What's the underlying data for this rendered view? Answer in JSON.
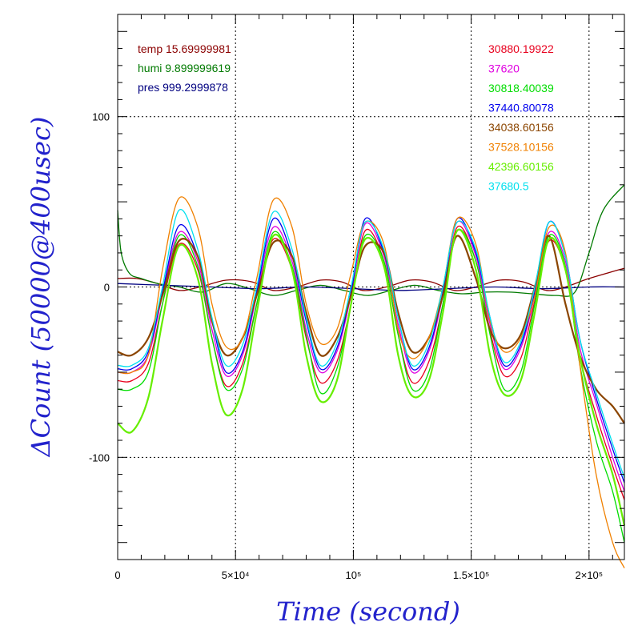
{
  "chart_data": {
    "type": "line",
    "title": "",
    "xlabel": "Time (second)",
    "ylabel": "ΔCount (50000@400usec)",
    "xlim": [
      0,
      215000
    ],
    "ylim": [
      -160,
      160
    ],
    "grid": true,
    "x_ticks": [
      {
        "value": 0,
        "label": "0"
      },
      {
        "value": 50000,
        "label": "5×10⁴"
      },
      {
        "value": 100000,
        "label": "10⁵"
      },
      {
        "value": 150000,
        "label": "1.5×10⁵"
      },
      {
        "value": 200000,
        "label": "2×10⁵"
      }
    ],
    "y_ticks": [
      {
        "value": 100,
        "label": "100"
      },
      {
        "value": 0,
        "label": "0"
      },
      {
        "value": -100,
        "label": "-100"
      }
    ],
    "env_legend": [
      {
        "label": "temp 15.69999981",
        "color": "#8b0000"
      },
      {
        "label": "humi 9.899999619",
        "color": "#007a00"
      },
      {
        "label": "pres 999.2999878",
        "color": "#000080"
      }
    ],
    "series_legend": [
      {
        "label": "30880.19922",
        "color": "#e8001e"
      },
      {
        "label": "37620",
        "color": "#e000e0"
      },
      {
        "label": "30818.40039",
        "color": "#00dd00"
      },
      {
        "label": "37440.80078",
        "color": "#0000ee"
      },
      {
        "label": "34038.60156",
        "color": "#8b4500"
      },
      {
        "label": "37528.10156",
        "color": "#f08000"
      },
      {
        "label": "42396.60156",
        "color": "#66ee00"
      },
      {
        "label": "37680.5",
        "color": "#00e0ee"
      }
    ],
    "series": [
      {
        "name": "temp 15.69999981",
        "color": "#8b0000",
        "x": [
          0,
          8000,
          17000,
          26000,
          35000,
          46000,
          57000,
          66000,
          76000,
          86000,
          95000,
          104000,
          114000,
          124000,
          133000,
          143000,
          152000,
          162000,
          172000,
          182000,
          190000,
          200000,
          215000
        ],
        "values": [
          5,
          5,
          2,
          -2,
          0,
          4,
          3,
          -2,
          0,
          4,
          3,
          -2,
          0,
          4,
          3,
          -2,
          0,
          4,
          3,
          -2,
          0,
          5,
          11
        ]
      },
      {
        "name": "humi 9.899999619",
        "color": "#007a00",
        "x": [
          0,
          1500,
          5000,
          10000,
          17000,
          26000,
          36000,
          46000,
          56000,
          66000,
          76000,
          86000,
          96000,
          106000,
          116000,
          126000,
          136000,
          146000,
          156000,
          166000,
          176000,
          186000,
          194000,
          200000,
          206000,
          215000
        ],
        "values": [
          45,
          20,
          8,
          5,
          2,
          0,
          -3,
          2,
          -1,
          -5,
          -2,
          1,
          -2,
          -5,
          -2,
          1,
          -2,
          -4,
          -3,
          -3,
          -4,
          -5,
          -3,
          20,
          45,
          60
        ]
      },
      {
        "name": "pres 999.2999878",
        "color": "#000080",
        "x": [
          0,
          20000,
          40000,
          60000,
          80000,
          100000,
          120000,
          140000,
          160000,
          180000,
          200000,
          215000
        ],
        "values": [
          2,
          1,
          0,
          -1,
          0,
          -1,
          -2,
          -1,
          0,
          -1,
          0,
          0
        ]
      },
      {
        "name": "30880.19922",
        "color": "#e8001e",
        "x": [
          0,
          6000,
          13000,
          19000,
          26000,
          34000,
          40000,
          46000,
          53000,
          59000,
          66000,
          74000,
          80000,
          86000,
          93000,
          99000,
          105000,
          113000,
          119000,
          125000,
          132000,
          138000,
          144000,
          152000,
          158000,
          164000,
          171000,
          177000,
          183000,
          190000,
          196000,
          203000,
          210000,
          215000
        ],
        "values": [
          -55,
          -55,
          -45,
          -10,
          25,
          10,
          -30,
          -58,
          -45,
          -10,
          28,
          10,
          -30,
          -56,
          -44,
          -10,
          33,
          15,
          -28,
          -56,
          -44,
          -10,
          35,
          15,
          -26,
          -52,
          -42,
          -8,
          27,
          10,
          -40,
          -75,
          -105,
          -125
        ]
      },
      {
        "name": "37620",
        "color": "#e000e0",
        "x": [
          0,
          6000,
          13000,
          19000,
          26000,
          34000,
          40000,
          46000,
          53000,
          59000,
          66000,
          74000,
          80000,
          86000,
          93000,
          99000,
          105000,
          113000,
          119000,
          125000,
          132000,
          138000,
          144000,
          152000,
          158000,
          164000,
          171000,
          177000,
          183000,
          190000,
          196000,
          203000,
          210000,
          215000
        ],
        "values": [
          -50,
          -50,
          -40,
          -5,
          32,
          15,
          -25,
          -52,
          -40,
          -5,
          35,
          15,
          -25,
          -50,
          -38,
          -5,
          37,
          18,
          -22,
          -50,
          -38,
          -5,
          38,
          18,
          -22,
          -48,
          -36,
          -5,
          32,
          15,
          -35,
          -68,
          -100,
          -120
        ]
      },
      {
        "name": "30818.40039",
        "color": "#00dd00",
        "x": [
          0,
          6000,
          13000,
          19000,
          26000,
          34000,
          40000,
          46000,
          53000,
          59000,
          66000,
          74000,
          80000,
          86000,
          93000,
          99000,
          105000,
          113000,
          119000,
          125000,
          132000,
          138000,
          144000,
          152000,
          158000,
          164000,
          171000,
          177000,
          183000,
          190000,
          196000,
          203000,
          210000,
          215000
        ],
        "values": [
          -60,
          -60,
          -50,
          -10,
          30,
          12,
          -30,
          -60,
          -48,
          -10,
          32,
          12,
          -28,
          -62,
          -48,
          -10,
          30,
          15,
          -28,
          -60,
          -50,
          -10,
          33,
          15,
          -28,
          -60,
          -50,
          -10,
          30,
          12,
          -45,
          -90,
          -120,
          -150
        ]
      },
      {
        "name": "37440.80078",
        "color": "#0000ee",
        "x": [
          0,
          6000,
          13000,
          19000,
          26000,
          34000,
          40000,
          46000,
          53000,
          59000,
          66000,
          74000,
          80000,
          86000,
          93000,
          99000,
          105000,
          113000,
          119000,
          125000,
          132000,
          138000,
          144000,
          152000,
          158000,
          164000,
          171000,
          177000,
          183000,
          190000,
          196000,
          203000,
          210000,
          215000
        ],
        "values": [
          -48,
          -48,
          -38,
          -3,
          36,
          18,
          -20,
          -50,
          -38,
          -3,
          40,
          18,
          -20,
          -48,
          -36,
          -3,
          40,
          20,
          -18,
          -48,
          -36,
          -3,
          40,
          20,
          -18,
          -46,
          -34,
          -3,
          38,
          18,
          -30,
          -65,
          -95,
          -115
        ]
      },
      {
        "name": "34038.60156",
        "color": "#8b4500",
        "x": [
          0,
          6000,
          13000,
          19000,
          26000,
          34000,
          40000,
          46000,
          53000,
          59000,
          66000,
          74000,
          80000,
          86000,
          93000,
          99000,
          105000,
          113000,
          119000,
          125000,
          132000,
          138000,
          144000,
          152000,
          158000,
          164000,
          171000,
          177000,
          183000,
          190000,
          196000,
          203000,
          210000,
          215000
        ],
        "values": [
          -38,
          -40,
          -30,
          -5,
          27,
          18,
          -20,
          -40,
          -30,
          -5,
          26,
          18,
          -15,
          -40,
          -30,
          -5,
          24,
          20,
          -15,
          -38,
          -30,
          -5,
          30,
          5,
          -25,
          -36,
          -28,
          0,
          30,
          -10,
          -40,
          -60,
          -70,
          -80
        ]
      },
      {
        "name": "37528.10156",
        "color": "#f08000",
        "x": [
          0,
          6000,
          13000,
          19000,
          26000,
          34000,
          40000,
          46000,
          53000,
          59000,
          66000,
          74000,
          80000,
          86000,
          93000,
          99000,
          105000,
          113000,
          119000,
          125000,
          132000,
          138000,
          144000,
          152000,
          158000,
          164000,
          171000,
          177000,
          183000,
          190000,
          196000,
          203000,
          210000,
          215000
        ],
        "values": [
          -50,
          -50,
          -40,
          10,
          52,
          35,
          -10,
          -35,
          -30,
          5,
          51,
          35,
          -10,
          -33,
          -25,
          8,
          38,
          25,
          -25,
          -42,
          -30,
          0,
          40,
          25,
          -20,
          -38,
          -30,
          -5,
          35,
          20,
          -45,
          -110,
          -150,
          -165
        ]
      },
      {
        "name": "42396.60156",
        "color": "#66ee00",
        "x": [
          0,
          6000,
          13000,
          19000,
          26000,
          34000,
          40000,
          46000,
          53000,
          59000,
          66000,
          74000,
          80000,
          86000,
          93000,
          99000,
          105000,
          113000,
          119000,
          125000,
          132000,
          138000,
          144000,
          152000,
          158000,
          164000,
          171000,
          177000,
          183000,
          190000,
          196000,
          203000,
          210000,
          215000
        ],
        "values": [
          -80,
          -85,
          -65,
          -20,
          24,
          5,
          -45,
          -75,
          -60,
          -15,
          30,
          10,
          -40,
          -67,
          -55,
          -10,
          28,
          12,
          -40,
          -64,
          -55,
          -15,
          33,
          10,
          -40,
          -63,
          -55,
          -15,
          28,
          10,
          -40,
          -80,
          -110,
          -140
        ]
      },
      {
        "name": "37680.5",
        "color": "#00e0ee",
        "x": [
          0,
          6000,
          13000,
          19000,
          26000,
          34000,
          40000,
          46000,
          53000,
          59000,
          66000,
          74000,
          80000,
          86000,
          93000,
          99000,
          105000,
          113000,
          119000,
          125000,
          132000,
          138000,
          144000,
          152000,
          158000,
          164000,
          171000,
          177000,
          183000,
          190000,
          196000,
          203000,
          210000,
          215000
        ],
        "values": [
          -46,
          -46,
          -36,
          0,
          45,
          22,
          -18,
          -46,
          -34,
          0,
          44,
          22,
          -18,
          -46,
          -33,
          0,
          38,
          22,
          -18,
          -46,
          -33,
          0,
          38,
          22,
          -18,
          -44,
          -32,
          0,
          38,
          18,
          -30,
          -62,
          -92,
          -112
        ]
      }
    ]
  }
}
